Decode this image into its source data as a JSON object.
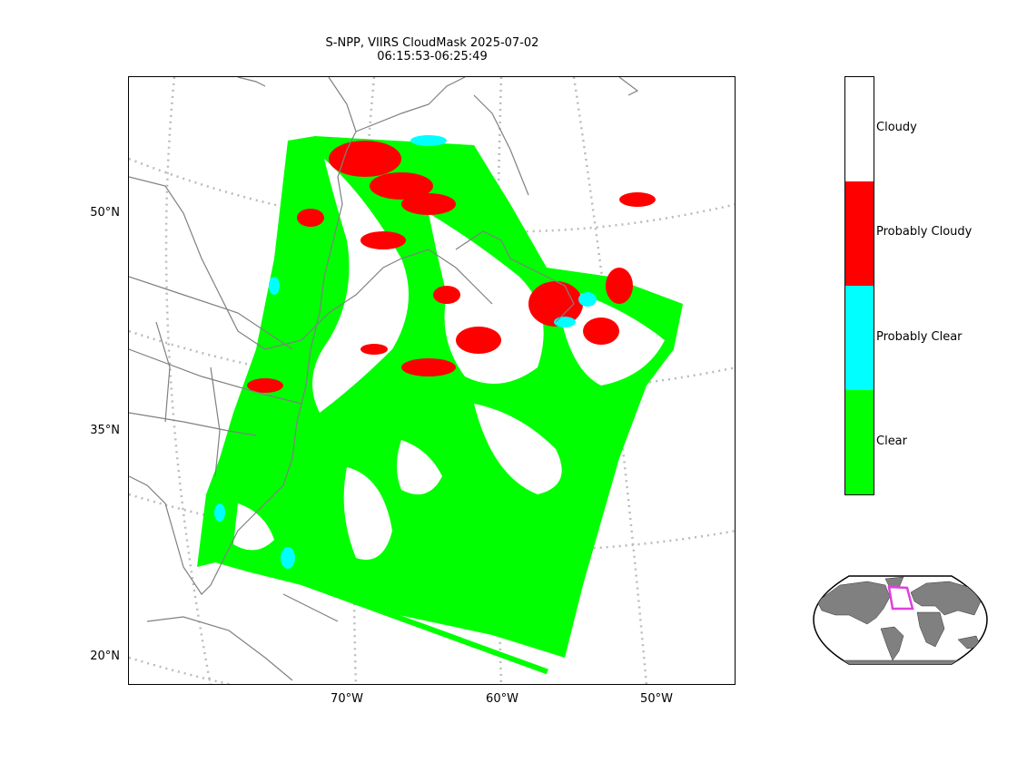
{
  "title": {
    "line1": "S-NPP, VIIRS CloudMask 2025-07-02",
    "line2": "06:15:53-06:25:49"
  },
  "map": {
    "lat_labels": [
      "50°N",
      "35°N",
      "20°N"
    ],
    "lon_labels": [
      "70°W",
      "60°W",
      "50°W"
    ],
    "coastline_color": "#808080",
    "graticule_color": "#bbbbbb"
  },
  "legend": {
    "classes": [
      {
        "label": "Cloudy",
        "color": "#ffffff"
      },
      {
        "label": "Probably Cloudy",
        "color": "#ff0000"
      },
      {
        "label": "Probably Clear",
        "color": "#00ffff"
      },
      {
        "label": "Clear",
        "color": "#00ff00"
      }
    ]
  },
  "inset": {
    "land_color": "#808080",
    "box_color": "#e040e0"
  }
}
